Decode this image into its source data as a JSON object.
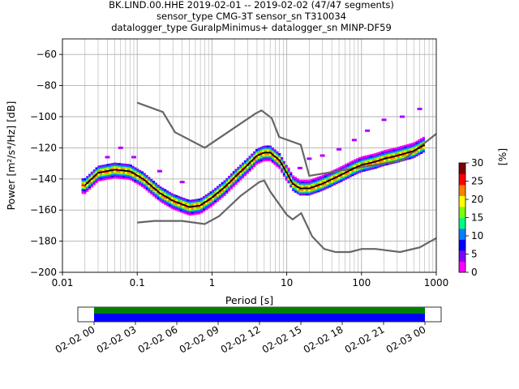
{
  "title_lines": [
    "BK.LIND.00.HHE   2019-02-01 -- 2019-02-02  (47/47 segments)",
    "sensor_type CMG-3T sensor_sn T310034",
    "datalogger_type GuralpMinimus+ datalogger_sn MINP-DF59"
  ],
  "chart_data": {
    "type": "heatmap",
    "xlabel": "Period [s]",
    "ylabel": "Power [m²/s⁴/Hz] [dB]",
    "x_scale": "log",
    "xlim": [
      0.01,
      1000
    ],
    "ylim": [
      -200,
      -50
    ],
    "x_ticks": [
      0.01,
      0.1,
      1,
      10,
      100,
      1000
    ],
    "x_tick_labels": [
      "0.01",
      "0.1",
      "1",
      "10",
      "100",
      "1000"
    ],
    "y_ticks": [
      -200,
      -180,
      -160,
      -140,
      -120,
      -100,
      -80,
      -60
    ],
    "grid": true,
    "colorbar": {
      "label": "[%]",
      "min": 0,
      "max": 30,
      "ticks": [
        0,
        5,
        10,
        15,
        20,
        25,
        30
      ],
      "colors": [
        "#ff00ff",
        "#8000ff",
        "#0000ff",
        "#0080ff",
        "#00ff80",
        "#80ff00",
        "#ffff00",
        "#ff8000",
        "#ff0000",
        "#800000"
      ]
    },
    "series": [
      {
        "name": "NHNM",
        "color": "#666666",
        "x": [
          0.1,
          0.22,
          0.32,
          0.8,
          3.8,
          4.6,
          6.3,
          7.9,
          15.4,
          20,
          354.8,
          1000
        ],
        "y": [
          -91,
          -97,
          -110,
          -120,
          -98,
          -96,
          -101,
          -113,
          -118,
          -138,
          -128,
          -111
        ]
      },
      {
        "name": "NLNM",
        "color": "#666666",
        "x": [
          0.1,
          0.17,
          0.4,
          0.8,
          1.24,
          2.4,
          4.3,
          5.0,
          6.0,
          10,
          12,
          15.6,
          21.9,
          31.6,
          45,
          70,
          101,
          154,
          328,
          600,
          1000
        ],
        "y": [
          -168,
          -167,
          -167,
          -169,
          -164,
          -151,
          -142,
          -141,
          -148,
          -163,
          -166,
          -162,
          -177,
          -185,
          -187,
          -187,
          -185,
          -185,
          -187,
          -184,
          -178
        ]
      },
      {
        "name": "mean",
        "color": "#000000",
        "x": [
          0.02,
          0.03,
          0.05,
          0.08,
          0.12,
          0.2,
          0.3,
          0.5,
          0.7,
          1.0,
          1.5,
          2.0,
          3.0,
          4.0,
          5.0,
          6.0,
          8.0,
          10.0,
          12.0,
          15.0,
          20.0,
          30.0,
          50.0,
          80.0,
          100.0,
          150.0,
          200.0,
          300.0,
          500.0,
          700.0
        ],
        "y": [
          -144,
          -136,
          -134,
          -135,
          -140,
          -149,
          -154,
          -158,
          -157,
          -152,
          -145,
          -139,
          -131,
          -125,
          -123,
          -123,
          -128,
          -136,
          -143,
          -146,
          -146,
          -143,
          -138,
          -133,
          -131,
          -129,
          -127,
          -125,
          -122,
          -118
        ]
      }
    ],
    "scatter_highs": [
      {
        "x": 0.04,
        "y": -126
      },
      {
        "x": 0.06,
        "y": -120
      },
      {
        "x": 0.09,
        "y": -126
      },
      {
        "x": 0.2,
        "y": -135
      },
      {
        "x": 0.4,
        "y": -142
      },
      {
        "x": 15,
        "y": -133
      },
      {
        "x": 20,
        "y": -127
      },
      {
        "x": 30,
        "y": -125
      },
      {
        "x": 50,
        "y": -121
      },
      {
        "x": 80,
        "y": -115
      },
      {
        "x": 120,
        "y": -109
      },
      {
        "x": 200,
        "y": -102
      },
      {
        "x": 350,
        "y": -100
      },
      {
        "x": 600,
        "y": -95
      }
    ],
    "time_axis": {
      "tick_labels": [
        "02-02 00",
        "02-02 03",
        "02-02 06",
        "02-02 09",
        "02-02 12",
        "02-02 15",
        "02-02 18",
        "02-02 21",
        "02-03 00"
      ],
      "data_color": "#0000ff",
      "gap_color": "#008000"
    }
  }
}
